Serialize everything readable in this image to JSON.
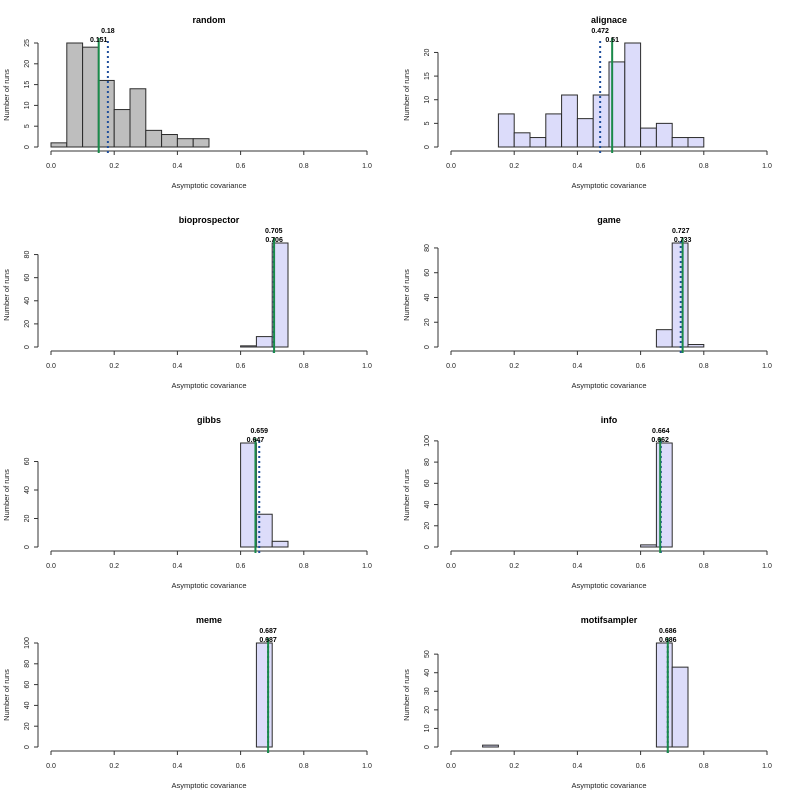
{
  "figure": {
    "layout": "4 rows x 2 columns"
  },
  "chart_data": [
    {
      "type": "bar",
      "subtype": "histogram",
      "title": "random",
      "xlabel": "Asymptotic covariance",
      "ylabel": "Number of runs",
      "xlim": [
        0,
        1
      ],
      "x_ticks": [
        "0.0",
        "0.2",
        "0.4",
        "0.6",
        "0.8",
        "1.0"
      ],
      "y_ticks": [
        0,
        5,
        10,
        15,
        20,
        25
      ],
      "bin_width": 0.05,
      "bin_start": 0.0,
      "values": [
        1,
        25,
        24,
        16,
        9,
        14,
        4,
        3,
        2,
        2,
        0,
        0,
        0,
        0,
        0,
        0,
        0,
        0,
        0,
        0
      ],
      "fill": "#bebebe",
      "lines": [
        {
          "name": "dotted",
          "value": 0.18,
          "label": "0.18",
          "color": "#1f4e9c",
          "style": "dotted"
        },
        {
          "name": "solid",
          "value": 0.151,
          "label": "0.151",
          "color": "#1a8a4a",
          "style": "solid"
        }
      ]
    },
    {
      "type": "bar",
      "subtype": "histogram",
      "title": "alignace",
      "xlabel": "Asymptotic covariance",
      "ylabel": "Number of runs",
      "xlim": [
        0,
        1
      ],
      "x_ticks": [
        "0.0",
        "0.2",
        "0.4",
        "0.6",
        "0.8",
        "1.0"
      ],
      "y_ticks": [
        0,
        5,
        10,
        15,
        20
      ],
      "bin_width": 0.05,
      "bin_start": 0.0,
      "values": [
        0,
        0,
        0,
        7,
        3,
        2,
        7,
        11,
        6,
        11,
        18,
        22,
        4,
        5,
        2,
        2,
        0,
        0,
        0,
        0
      ],
      "fill": "#dcdcfa",
      "lines": [
        {
          "name": "dotted",
          "value": 0.472,
          "label": "0.472",
          "color": "#1f4e9c",
          "style": "dotted"
        },
        {
          "name": "solid",
          "value": 0.51,
          "label": "0.51",
          "color": "#1a8a4a",
          "style": "solid"
        }
      ]
    },
    {
      "type": "bar",
      "subtype": "histogram",
      "title": "bioprospector",
      "xlabel": "Asymptotic covariance",
      "ylabel": "Number of runs",
      "xlim": [
        0,
        1
      ],
      "x_ticks": [
        "0.0",
        "0.2",
        "0.4",
        "0.6",
        "0.8",
        "1.0"
      ],
      "y_ticks": [
        0,
        20,
        40,
        60,
        80
      ],
      "bin_width": 0.05,
      "bin_start": 0.0,
      "values": [
        0,
        0,
        0,
        0,
        0,
        0,
        0,
        0,
        0,
        0,
        0,
        0,
        1,
        9,
        90,
        0,
        0,
        0,
        0,
        0
      ],
      "fill": "#dcdcfa",
      "lines": [
        {
          "name": "dotted",
          "value": 0.705,
          "label": "0.705",
          "color": "#1f4e9c",
          "style": "dotted"
        },
        {
          "name": "solid",
          "value": 0.706,
          "label": "0.706",
          "color": "#1a8a4a",
          "style": "solid"
        }
      ]
    },
    {
      "type": "bar",
      "subtype": "histogram",
      "title": "game",
      "xlabel": "Asymptotic covariance",
      "ylabel": "Number of runs",
      "xlim": [
        0,
        1
      ],
      "x_ticks": [
        "0.0",
        "0.2",
        "0.4",
        "0.6",
        "0.8",
        "1.0"
      ],
      "y_ticks": [
        0,
        20,
        40,
        60,
        80
      ],
      "bin_width": 0.05,
      "bin_start": 0.0,
      "values": [
        0,
        0,
        0,
        0,
        0,
        0,
        0,
        0,
        0,
        0,
        0,
        0,
        0,
        14,
        84,
        2,
        0,
        0,
        0,
        0
      ],
      "fill": "#dcdcfa",
      "lines": [
        {
          "name": "dotted",
          "value": 0.727,
          "label": "0.727",
          "color": "#1f4e9c",
          "style": "dotted"
        },
        {
          "name": "solid",
          "value": 0.733,
          "label": "0.733",
          "color": "#1a8a4a",
          "style": "solid"
        }
      ]
    },
    {
      "type": "bar",
      "subtype": "histogram",
      "title": "gibbs",
      "xlabel": "Asymptotic covariance",
      "ylabel": "Number of runs",
      "xlim": [
        0,
        1
      ],
      "x_ticks": [
        "0.0",
        "0.2",
        "0.4",
        "0.6",
        "0.8",
        "1.0"
      ],
      "y_ticks": [
        0,
        20,
        40,
        60
      ],
      "bin_width": 0.05,
      "bin_start": 0.0,
      "values": [
        0,
        0,
        0,
        0,
        0,
        0,
        0,
        0,
        0,
        0,
        0,
        0,
        73,
        23,
        4,
        0,
        0,
        0,
        0,
        0
      ],
      "fill": "#dcdcfa",
      "lines": [
        {
          "name": "dotted",
          "value": 0.659,
          "label": "0.659",
          "color": "#1f4e9c",
          "style": "dotted"
        },
        {
          "name": "solid",
          "value": 0.647,
          "label": "0.647",
          "color": "#1a8a4a",
          "style": "solid"
        }
      ]
    },
    {
      "type": "bar",
      "subtype": "histogram",
      "title": "info",
      "xlabel": "Asymptotic covariance",
      "ylabel": "Number of runs",
      "xlim": [
        0,
        1
      ],
      "x_ticks": [
        "0.0",
        "0.2",
        "0.4",
        "0.6",
        "0.8",
        "1.0"
      ],
      "y_ticks": [
        0,
        20,
        40,
        60,
        80,
        100
      ],
      "bin_width": 0.05,
      "bin_start": 0.0,
      "values": [
        0,
        0,
        0,
        0,
        0,
        0,
        0,
        0,
        0,
        0,
        0,
        0,
        2,
        98,
        0,
        0,
        0,
        0,
        0,
        0
      ],
      "fill": "#dcdcfa",
      "lines": [
        {
          "name": "dotted",
          "value": 0.664,
          "label": "0.664",
          "color": "#1f4e9c",
          "style": "dotted"
        },
        {
          "name": "solid",
          "value": 0.662,
          "label": "0.662",
          "color": "#1a8a4a",
          "style": "solid"
        }
      ]
    },
    {
      "type": "bar",
      "subtype": "histogram",
      "title": "meme",
      "xlabel": "Asymptotic covariance",
      "ylabel": "Number of runs",
      "xlim": [
        0,
        1
      ],
      "x_ticks": [
        "0.0",
        "0.2",
        "0.4",
        "0.6",
        "0.8",
        "1.0"
      ],
      "y_ticks": [
        0,
        20,
        40,
        60,
        80,
        100
      ],
      "bin_width": 0.05,
      "bin_start": 0.0,
      "values": [
        0,
        0,
        0,
        0,
        0,
        0,
        0,
        0,
        0,
        0,
        0,
        0,
        0,
        100,
        0,
        0,
        0,
        0,
        0,
        0
      ],
      "fill": "#dcdcfa",
      "lines": [
        {
          "name": "dotted",
          "value": 0.687,
          "label": "0.687",
          "color": "#1f4e9c",
          "style": "dotted"
        },
        {
          "name": "solid",
          "value": 0.687,
          "label": "0.687",
          "color": "#1a8a4a",
          "style": "solid"
        }
      ]
    },
    {
      "type": "bar",
      "subtype": "histogram",
      "title": "motifsampler",
      "xlabel": "Asymptotic covariance",
      "ylabel": "Number of runs",
      "xlim": [
        0,
        1
      ],
      "x_ticks": [
        "0.0",
        "0.2",
        "0.4",
        "0.6",
        "0.8",
        "1.0"
      ],
      "y_ticks": [
        0,
        10,
        20,
        30,
        40,
        50
      ],
      "bin_width": 0.05,
      "bin_start": 0.0,
      "values": [
        0,
        0,
        1,
        0,
        0,
        0,
        0,
        0,
        0,
        0,
        0,
        0,
        0,
        56,
        43,
        0,
        0,
        0,
        0,
        0
      ],
      "fill": "#dcdcfa",
      "lines": [
        {
          "name": "dotted",
          "value": 0.686,
          "label": "0.686",
          "color": "#1f4e9c",
          "style": "dotted"
        },
        {
          "name": "solid",
          "value": 0.686,
          "label": "0.686",
          "color": "#1a8a4a",
          "style": "solid"
        }
      ]
    }
  ]
}
